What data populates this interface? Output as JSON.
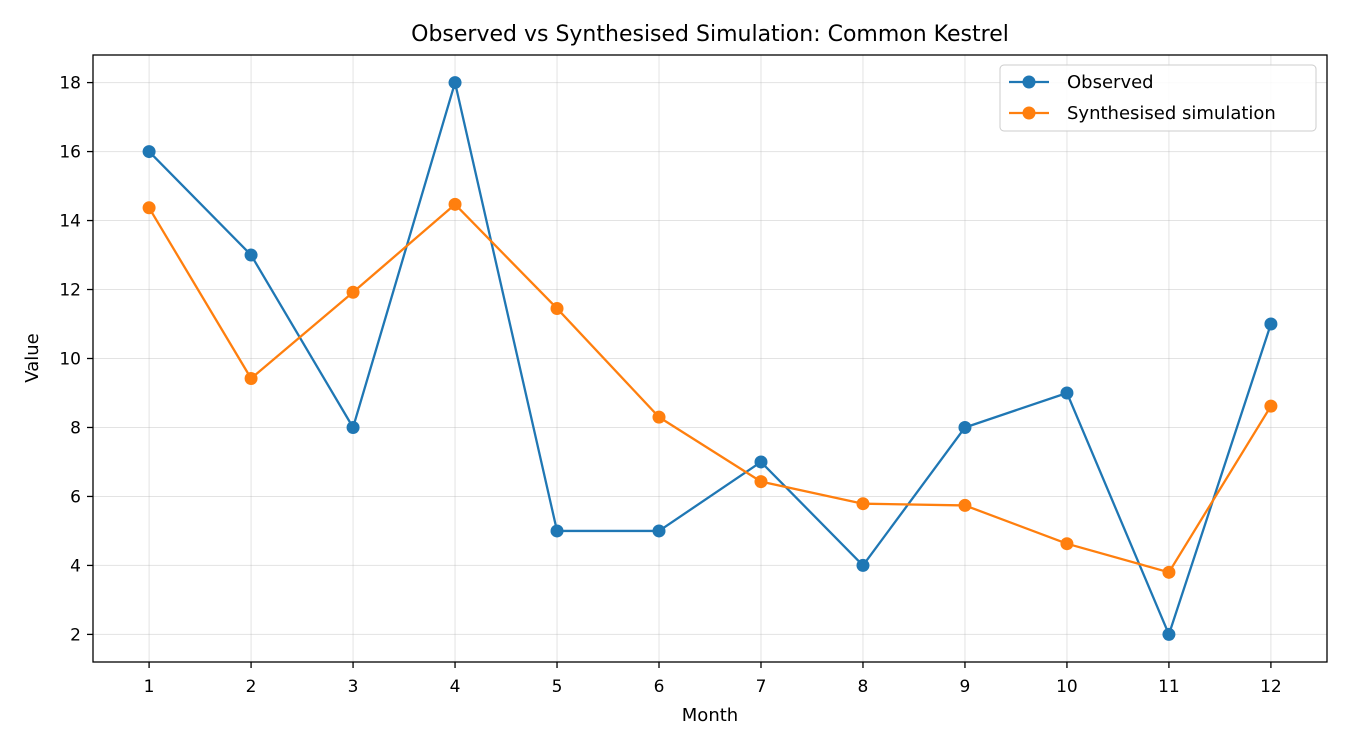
{
  "chart_data": {
    "type": "line",
    "title": "Observed vs Synthesised Simulation: Common Kestrel",
    "xlabel": "Month",
    "ylabel": "Value",
    "x": [
      1,
      2,
      3,
      4,
      5,
      6,
      7,
      8,
      9,
      10,
      11,
      12
    ],
    "xlim": [
      0.45,
      12.55
    ],
    "ylim": [
      1.2,
      18.8
    ],
    "yticks": [
      2,
      4,
      6,
      8,
      10,
      12,
      14,
      16,
      18
    ],
    "grid": true,
    "legend_position": "top-right",
    "series": [
      {
        "name": "Observed",
        "color": "#1f77b4",
        "values": [
          16,
          13,
          8,
          18,
          5,
          5,
          7,
          4,
          8,
          9,
          2,
          11
        ]
      },
      {
        "name": "Synthesised simulation",
        "color": "#ff7f0e",
        "values": [
          14.37,
          9.42,
          11.92,
          14.47,
          11.45,
          8.3,
          6.43,
          5.79,
          5.74,
          4.63,
          3.8,
          8.62
        ]
      }
    ]
  }
}
